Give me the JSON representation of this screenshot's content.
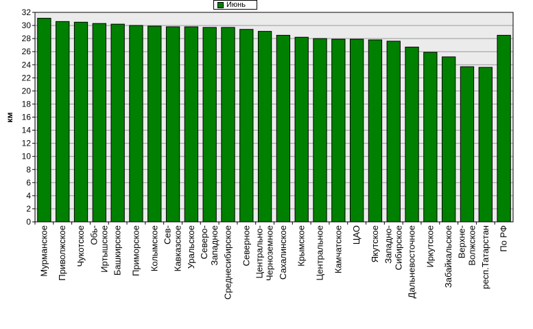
{
  "chart_data": {
    "type": "bar",
    "title": "",
    "xlabel": "",
    "ylabel": "км",
    "ylim": [
      0,
      32
    ],
    "ytick_step": 2,
    "grid": true,
    "legend_position": "top-center",
    "colors": {
      "bar": "#008000",
      "plot_bg": "#ebebeb",
      "grid": "#9a9a9a"
    },
    "categories": [
      [
        "Мурманское"
      ],
      [
        "Приволжское"
      ],
      [
        "Чукотское"
      ],
      [
        "Обь-",
        "Иртышское"
      ],
      [
        "Башкирское"
      ],
      [
        "Приморское"
      ],
      [
        "Колымское"
      ],
      [
        "Сев-",
        "Кавказское"
      ],
      [
        "Уральское"
      ],
      [
        "Северо-",
        "Западное"
      ],
      [
        "Среднесибирское"
      ],
      [
        "Северное"
      ],
      [
        "Центрально-",
        "Черноземное"
      ],
      [
        "Сахалинское"
      ],
      [
        "Крымское"
      ],
      [
        "Центральное"
      ],
      [
        "Камчатское"
      ],
      [
        "ЦАО"
      ],
      [
        "Якутское"
      ],
      [
        "Западно-",
        "Сибирское"
      ],
      [
        "Дальневосточное"
      ],
      [
        "Иркутское"
      ],
      [
        "Забайкальское"
      ],
      [
        "Верхне-",
        "Волжское"
      ],
      [
        "респ.Татарстан"
      ],
      [
        "По РФ"
      ]
    ],
    "series": [
      {
        "name": "Июнь",
        "values": [
          31.1,
          30.6,
          30.5,
          30.3,
          30.2,
          30.0,
          29.9,
          29.8,
          29.8,
          29.7,
          29.7,
          29.4,
          29.1,
          28.5,
          28.2,
          28.0,
          27.9,
          27.9,
          27.8,
          27.6,
          26.7,
          25.9,
          25.2,
          23.7,
          23.6,
          28.5
        ]
      }
    ]
  }
}
